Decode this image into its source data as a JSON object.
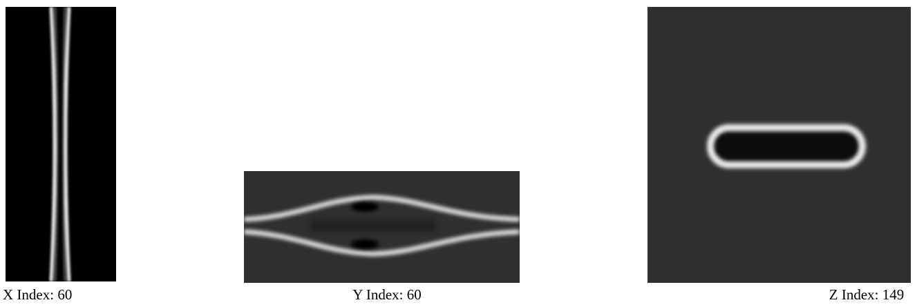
{
  "panels": [
    {
      "caption": "X Index: 60"
    },
    {
      "caption": "Y Index: 60"
    },
    {
      "caption": "Z Index: 149"
    }
  ]
}
